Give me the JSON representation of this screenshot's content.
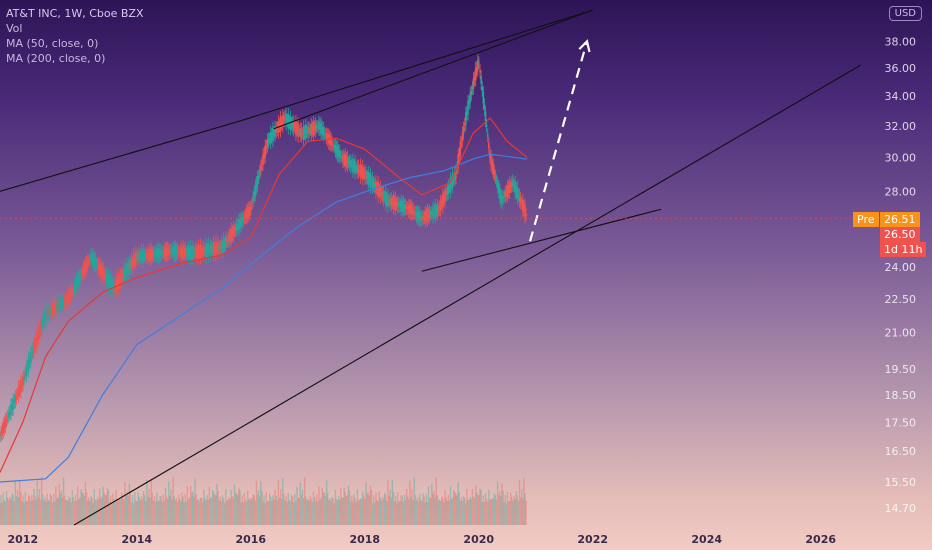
{
  "legend": {
    "symbol": "AT&T INC, 1W, Cboe BZX",
    "volume": "Vol",
    "ma50": "MA (50, close, 0)",
    "ma200": "MA (200, close, 0)"
  },
  "currency": "USD",
  "price_tags": {
    "pre_label": "Pre",
    "pre_value": "26.51",
    "last_value": "26.50",
    "countdown": "1d 11h"
  },
  "colors": {
    "up": "#26a69a",
    "down": "#ef5350",
    "ma50": "#e53935",
    "ma200": "#3f7fe0",
    "trendline": "#111111",
    "projection": "#ffffff",
    "pre_tag": "#f7931a",
    "last_tag": "#ef5350"
  },
  "chart_data": {
    "type": "candlestick",
    "title": "AT&T INC, 1W, Cboe BZX",
    "y_scale": "log",
    "ylim": [
      14.2,
      40.5
    ],
    "y_ticks": [
      38.0,
      36.0,
      34.0,
      32.0,
      30.0,
      28.0,
      26.5,
      24.0,
      22.5,
      21.0,
      19.5,
      18.5,
      17.5,
      16.5,
      15.5,
      14.7
    ],
    "x_ticks": [
      "2012",
      "2014",
      "2016",
      "2018",
      "2020",
      "2022",
      "2024",
      "2026"
    ],
    "xlim": [
      2011.6,
      2026.9
    ],
    "price_path": [
      [
        2011.6,
        17.0
      ],
      [
        2012.0,
        19.0
      ],
      [
        2012.4,
        21.8
      ],
      [
        2012.8,
        22.5
      ],
      [
        2013.2,
        24.5
      ],
      [
        2013.6,
        23.0
      ],
      [
        2014.0,
        24.5
      ],
      [
        2014.6,
        24.8
      ],
      [
        2015.0,
        24.7
      ],
      [
        2015.5,
        25.0
      ],
      [
        2016.0,
        27.0
      ],
      [
        2016.3,
        31.0
      ],
      [
        2016.6,
        32.5
      ],
      [
        2016.9,
        31.5
      ],
      [
        2017.2,
        32.0
      ],
      [
        2017.6,
        30.0
      ],
      [
        2018.0,
        29.0
      ],
      [
        2018.4,
        27.5
      ],
      [
        2018.8,
        27.0
      ],
      [
        2019.0,
        26.5
      ],
      [
        2019.3,
        27.0
      ],
      [
        2019.6,
        29.0
      ],
      [
        2019.8,
        33.0
      ],
      [
        2020.0,
        36.5
      ],
      [
        2020.2,
        30.0
      ],
      [
        2020.4,
        27.5
      ],
      [
        2020.6,
        28.5
      ],
      [
        2020.8,
        27.0
      ],
      [
        2020.85,
        26.5
      ]
    ],
    "ma50": [
      [
        2011.6,
        15.8
      ],
      [
        2012.0,
        17.5
      ],
      [
        2012.4,
        20.0
      ],
      [
        2012.8,
        21.5
      ],
      [
        2013.4,
        22.8
      ],
      [
        2014.0,
        23.5
      ],
      [
        2014.8,
        24.2
      ],
      [
        2015.5,
        24.6
      ],
      [
        2016.0,
        25.5
      ],
      [
        2016.5,
        29.0
      ],
      [
        2017.0,
        31.0
      ],
      [
        2017.5,
        31.2
      ],
      [
        2018.0,
        30.5
      ],
      [
        2018.6,
        28.8
      ],
      [
        2019.0,
        27.8
      ],
      [
        2019.5,
        28.5
      ],
      [
        2019.9,
        31.5
      ],
      [
        2020.2,
        32.5
      ],
      [
        2020.5,
        31.0
      ],
      [
        2020.85,
        30.0
      ]
    ],
    "ma200": [
      [
        2011.6,
        15.5
      ],
      [
        2012.4,
        15.6
      ],
      [
        2012.8,
        16.3
      ],
      [
        2013.4,
        18.5
      ],
      [
        2014.0,
        20.5
      ],
      [
        2014.8,
        21.8
      ],
      [
        2015.5,
        23.0
      ],
      [
        2016.2,
        24.6
      ],
      [
        2016.8,
        26.0
      ],
      [
        2017.5,
        27.4
      ],
      [
        2018.2,
        28.2
      ],
      [
        2018.8,
        28.8
      ],
      [
        2019.4,
        29.2
      ],
      [
        2019.9,
        29.9
      ],
      [
        2020.2,
        30.2
      ],
      [
        2020.85,
        29.9
      ]
    ],
    "volume_level": [
      0.12,
      0.2,
      0.1,
      0.25,
      0.15,
      0.1,
      0.3,
      0.18,
      0.12,
      0.22,
      0.14,
      0.35,
      0.2,
      0.16,
      0.45,
      0.25,
      0.3,
      0.2,
      0.5,
      0.28
    ],
    "trendlines": [
      {
        "from": [
          2011.6,
          28.0
        ],
        "to": [
          2015.8,
          32.3
        ]
      },
      {
        "from": [
          2015.8,
          32.3
        ],
        "to": [
          2022.0,
          40.5
        ]
      },
      {
        "from": [
          2016.4,
          31.8
        ],
        "to": [
          2022.0,
          40.5
        ]
      },
      {
        "from": [
          2012.9,
          14.2
        ],
        "to": [
          2026.7,
          36.2
        ]
      },
      {
        "from": [
          2019.0,
          23.8
        ],
        "to": [
          2023.2,
          27.0
        ]
      }
    ],
    "projection": {
      "from": [
        2020.9,
        25.3
      ],
      "to": [
        2021.9,
        38.0
      ]
    },
    "last_price": 26.5
  }
}
